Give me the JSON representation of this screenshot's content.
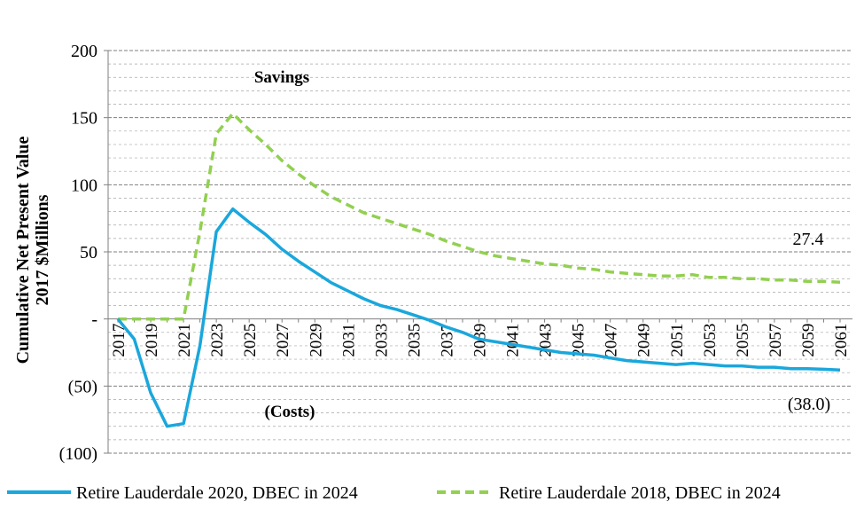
{
  "chart_data": {
    "type": "line",
    "title": "",
    "ylabel_lines": [
      "Cumulative Net Present Value",
      "2017 $Millions"
    ],
    "xlabel": "",
    "ylim": [
      -100,
      200
    ],
    "y_major_ticks": [
      -100,
      -50,
      0,
      50,
      100,
      150,
      200
    ],
    "y_tick_labels": [
      "(100)",
      "(50)",
      "-",
      "50",
      "100",
      "150",
      "200"
    ],
    "y_minor_step": 10,
    "grid": "horizontal dashed",
    "x": [
      2017,
      2018,
      2019,
      2020,
      2021,
      2022,
      2023,
      2024,
      2025,
      2026,
      2027,
      2028,
      2029,
      2030,
      2031,
      2032,
      2033,
      2034,
      2035,
      2036,
      2037,
      2038,
      2039,
      2040,
      2041,
      2042,
      2043,
      2044,
      2045,
      2046,
      2047,
      2048,
      2049,
      2050,
      2051,
      2052,
      2053,
      2054,
      2055,
      2056,
      2057,
      2058,
      2059,
      2060,
      2061
    ],
    "x_tick_labels": [
      "2017",
      "2019",
      "2021",
      "2023",
      "2025",
      "2027",
      "2029",
      "2031",
      "2033",
      "2035",
      "2037",
      "2039",
      "2041",
      "2043",
      "2045",
      "2047",
      "2049",
      "2051",
      "2053",
      "2055",
      "2057",
      "2059",
      "2061"
    ],
    "series": [
      {
        "name": "Retire Lauderdale 2020, DBEC in 2024",
        "color": "#1aa7dc",
        "style": "solid",
        "values": [
          0,
          -15,
          -55,
          -80,
          -78,
          -20,
          65,
          82,
          72,
          63,
          52,
          43,
          35,
          27,
          21,
          15,
          10,
          7,
          3,
          -1,
          -6,
          -10,
          -15,
          -17,
          -19,
          -21,
          -23,
          -25,
          -26,
          -27,
          -29,
          -31,
          -32,
          -33,
          -34,
          -33,
          -34,
          -35,
          -35,
          -36,
          -36,
          -37,
          -37,
          -37.5,
          -38
        ]
      },
      {
        "name": "Retire Lauderdale 2018, DBEC in 2024",
        "color": "#92d050",
        "style": "dashed",
        "values": [
          0,
          0,
          0,
          0,
          0,
          65,
          138,
          153,
          141,
          130,
          118,
          108,
          99,
          91,
          85,
          79,
          75,
          71,
          67,
          63,
          58,
          54,
          50,
          47,
          45,
          43,
          41,
          40,
          38,
          37,
          35,
          34,
          33,
          32,
          32,
          33,
          31,
          31,
          30,
          30,
          29,
          29,
          28,
          28,
          27.4
        ]
      }
    ],
    "annotations": {
      "savings": "Savings",
      "costs": "(Costs)",
      "end_green": "27.4",
      "end_blue": "(38.0)"
    },
    "legend_position": "bottom"
  }
}
